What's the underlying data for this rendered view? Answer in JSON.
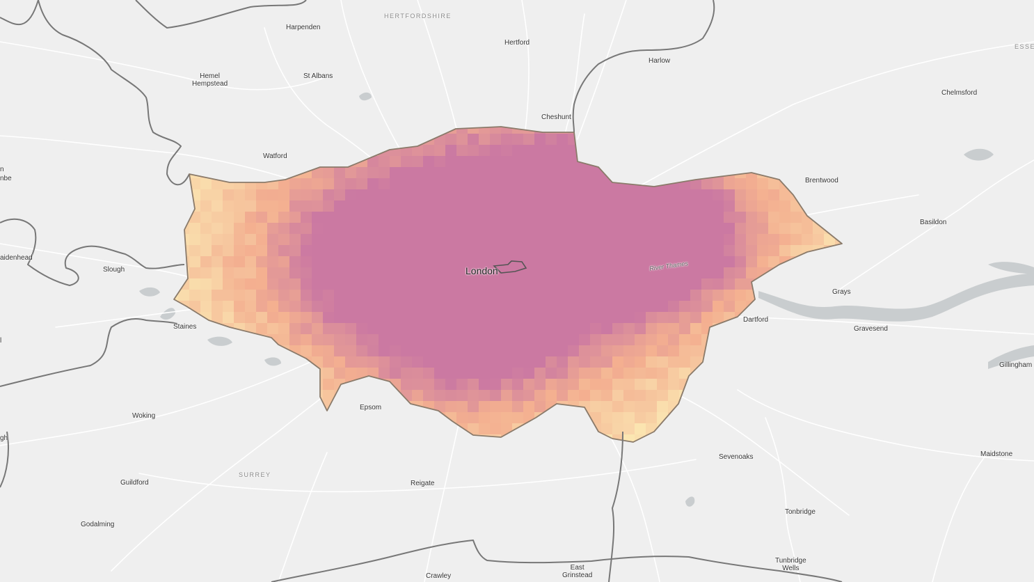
{
  "map": {
    "places": {
      "hertfordshire": "HERTFORDSHIRE",
      "essex": "ESSEX",
      "surrey": "SURREY",
      "harpenden": "Harpenden",
      "hertford": "Hertford",
      "hemel_hempstead": "Hemel\nHempstead",
      "st_albans": "St Albans",
      "harlow": "Harlow",
      "chelmsford": "Chelmsford",
      "cheshunt": "Cheshunt",
      "watford": "Watford",
      "brentwood": "Brentwood",
      "basildon": "Basildon",
      "maidenhead": "aidenhead",
      "slough": "Slough",
      "london": "London",
      "river_thames": "River Thames",
      "grays": "Grays",
      "dartford": "Dartford",
      "gravesend": "Gravesend",
      "staines": "Staines",
      "gillingham": "Gillingham",
      "epsom": "Epsom",
      "woking": "Woking",
      "sevenoaks": "Sevenoaks",
      "maidstone": "Maidstone",
      "guildford": "Guildford",
      "reigate": "Reigate",
      "tonbridge": "Tonbridge",
      "godalming": "Godalming",
      "tunbridge_wells": "Tunbridge\nWells",
      "east_grinstead": "East\nGrinstead",
      "crawley": "Crawley",
      "edge_nbe": "nbe",
      "edge_n": "n",
      "edge_l": "l",
      "edge_gh": "gh"
    },
    "colors": {
      "background": "#efefef",
      "roads": "#ffffff",
      "boundaries": "#777777",
      "water": "#c9cdcf",
      "ramp_low": "#fbf0b8",
      "ramp_mid": "#f2a98c",
      "ramp_high": "#c46ba0"
    }
  }
}
